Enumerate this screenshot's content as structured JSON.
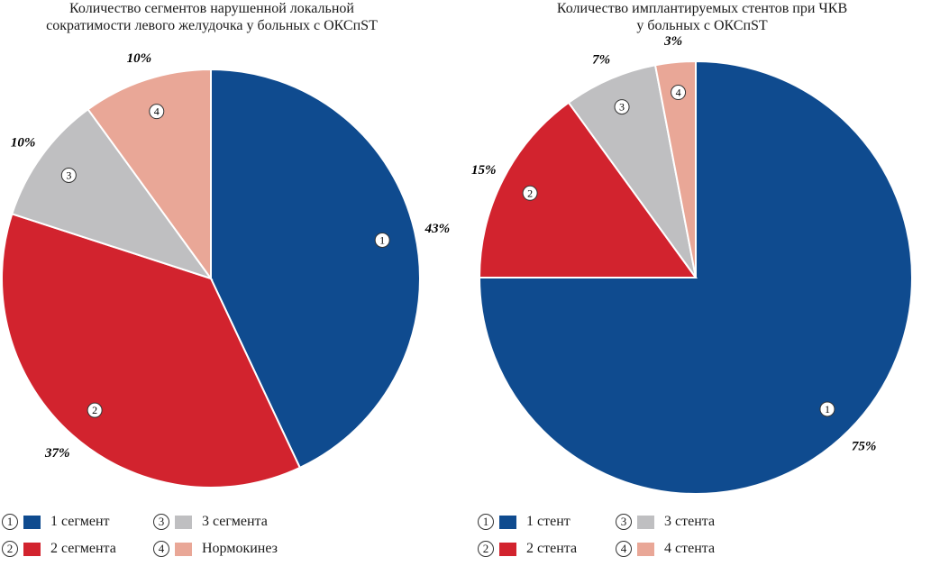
{
  "colors": {
    "1": "#0f4b8f",
    "2": "#d2232e",
    "3": "#bfbfc1",
    "4": "#e9a797"
  },
  "chart_data": [
    {
      "type": "pie",
      "title_lines": [
        "Количество сегментов нарушенной локальной",
        "сократимости левого желудочка у больных с ОКСпST"
      ],
      "categories": [
        "1",
        "2",
        "3",
        "4"
      ],
      "values": [
        43,
        37,
        10,
        10
      ],
      "labels": [
        "43%",
        "37%",
        "10%",
        "10%"
      ],
      "legend": [
        "1 сегмент",
        "2 сегмента",
        "3 сегмента",
        "Нормокинез"
      ],
      "start_angle_deg": 0,
      "direction": "clockwise"
    },
    {
      "type": "pie",
      "title_lines": [
        "Количество имплантируемых стентов при ЧКВ",
        "у больных с ОКСпST"
      ],
      "categories": [
        "1",
        "2",
        "3",
        "4"
      ],
      "values": [
        75,
        15,
        7,
        3
      ],
      "labels": [
        "75%",
        "15%",
        "7%",
        "3%"
      ],
      "legend": [
        "1 стент",
        "2 стента",
        "3 стента",
        "4 стента"
      ],
      "start_angle_deg": 0,
      "direction": "clockwise"
    }
  ]
}
